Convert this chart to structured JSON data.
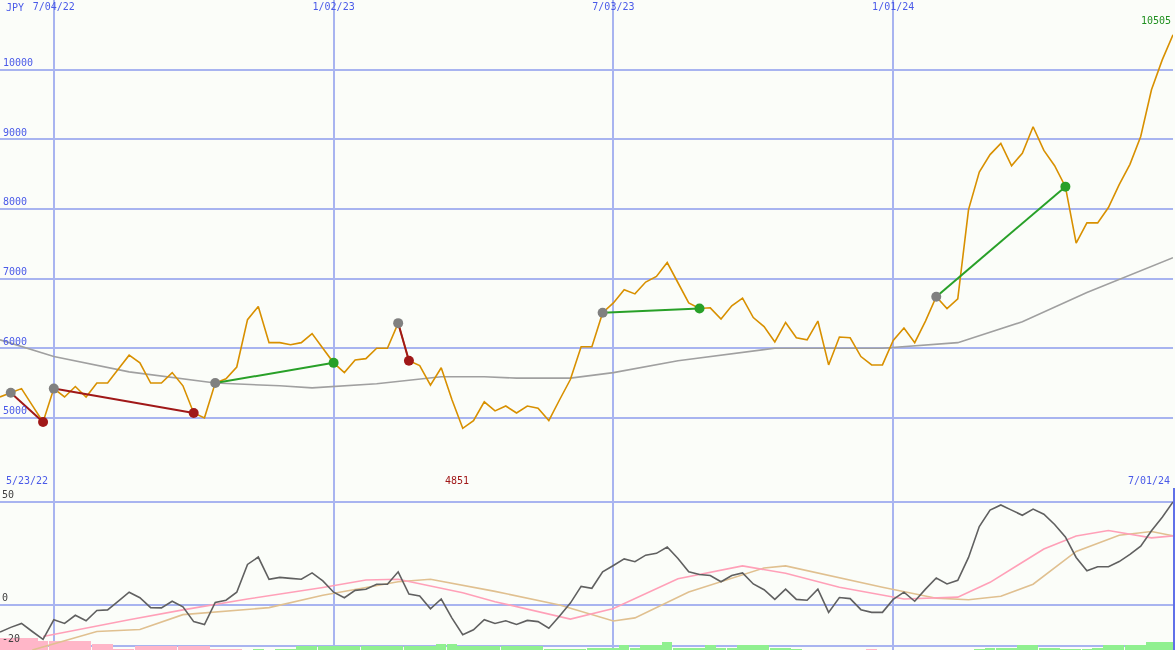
{
  "chart_data": [
    {
      "type": "line",
      "ylabel": "JPY",
      "x": [
        "2022-05-30",
        "2022-06-06",
        "2022-06-13",
        "2022-06-20",
        "2022-06-27",
        "2022-07-04",
        "2022-07-11",
        "2022-07-18",
        "2022-07-25",
        "2022-08-01",
        "2022-08-08",
        "2022-08-15",
        "2022-08-22",
        "2022-08-29",
        "2022-09-05",
        "2022-09-12",
        "2022-09-19",
        "2022-09-26",
        "2022-10-03",
        "2022-10-10",
        "2022-10-17",
        "2022-10-24",
        "2022-10-31",
        "2022-11-07",
        "2022-11-14",
        "2022-11-21",
        "2022-11-28",
        "2022-12-05",
        "2022-12-12",
        "2022-12-19",
        "2022-12-26",
        "2023-01-02",
        "2023-01-09",
        "2023-01-16",
        "2023-01-23",
        "2023-01-30",
        "2023-02-06",
        "2023-02-13",
        "2023-02-20",
        "2023-02-27",
        "2023-03-06",
        "2023-03-13",
        "2023-03-20",
        "2023-03-27",
        "2023-04-03",
        "2023-04-10",
        "2023-04-17",
        "2023-04-24",
        "2023-05-01",
        "2023-05-08",
        "2023-05-15",
        "2023-05-22",
        "2023-05-29",
        "2023-06-05",
        "2023-06-12",
        "2023-06-19",
        "2023-06-26",
        "2023-07-03",
        "2023-07-10",
        "2023-07-17",
        "2023-07-24",
        "2023-07-31",
        "2023-08-07",
        "2023-08-14",
        "2023-08-21",
        "2023-08-28",
        "2023-09-04",
        "2023-09-11",
        "2023-09-18",
        "2023-09-25",
        "2023-10-02",
        "2023-10-09",
        "2023-10-16",
        "2023-10-23",
        "2023-10-30",
        "2023-11-06",
        "2023-11-13",
        "2023-11-20",
        "2023-11-27",
        "2023-12-04",
        "2023-12-11",
        "2023-12-18",
        "2023-12-25",
        "2024-01-01",
        "2024-01-08",
        "2024-01-15",
        "2024-01-22",
        "2024-01-29",
        "2024-02-05",
        "2024-02-12",
        "2024-02-19",
        "2024-02-26",
        "2024-03-04",
        "2024-03-11",
        "2024-03-18",
        "2024-03-25",
        "2024-04-01",
        "2024-04-08",
        "2024-04-15",
        "2024-04-22",
        "2024-04-29",
        "2024-05-06",
        "2024-05-13",
        "2024-05-20",
        "2024-05-27",
        "2024-06-03",
        "2024-06-10",
        "2024-06-17",
        "2024-06-24",
        "2024-07-01"
      ],
      "series": [
        {
          "color": "#a0a0a0",
          "x": [
            "2022-05-30",
            "2022-07-04",
            "2022-08-22",
            "2022-10-17",
            "2022-11-28",
            "2022-12-19",
            "2023-01-30",
            "2023-03-13",
            "2023-04-10",
            "2023-05-01",
            "2023-06-05",
            "2023-07-03",
            "2023-08-14",
            "2023-10-16",
            "2023-12-25",
            "2024-02-12",
            "2024-03-25",
            "2024-05-06",
            "2024-07-01"
          ],
          "values": [
            6120,
            5880,
            5660,
            5500,
            5460,
            5430,
            5490,
            5590,
            5590,
            5570,
            5570,
            5650,
            5820,
            6000,
            6000,
            6080,
            6380,
            6800,
            7300
          ]
        },
        {
          "color": "#d89000",
          "values": [
            5300,
            5360,
            5420,
            5180,
            4940,
            5420,
            5300,
            5450,
            5300,
            5500,
            5500,
            5700,
            5900,
            5790,
            5500,
            5500,
            5650,
            5460,
            5070,
            5000,
            5500,
            5560,
            5730,
            6410,
            6600,
            6080,
            6080,
            6050,
            6080,
            6210,
            6000,
            5790,
            5650,
            5830,
            5850,
            6000,
            6000,
            6360,
            5820,
            5750,
            5470,
            5720,
            5260,
            4850,
            4960,
            5230,
            5100,
            5170,
            5070,
            5170,
            5140,
            4960,
            5260,
            5550,
            6020,
            6020,
            6510,
            6650,
            6840,
            6780,
            6950,
            7030,
            7230,
            6940,
            6650,
            6570,
            6580,
            6420,
            6610,
            6720,
            6440,
            6310,
            6090,
            6370,
            6150,
            6120,
            6390,
            5760,
            6160,
            6150,
            5880,
            5760,
            5760,
            6110,
            6290,
            6080,
            6390,
            6740,
            6570,
            6710,
            7990,
            8530,
            8780,
            8940,
            8620,
            8800,
            9180,
            8840,
            8620,
            8320,
            7510,
            7800,
            7800,
            8020,
            8350,
            8640,
            9040,
            9710,
            10140,
            10500
          ]
        },
        {
          "color": "#a01818",
          "marker": "circle",
          "colors": [
            "#808080",
            "#a01818"
          ],
          "x": [
            "2022-06-06",
            "2022-06-27"
          ],
          "values": [
            5360,
            4940
          ]
        },
        {
          "color": "#a01818",
          "marker": "circle",
          "colors": [
            "#808080",
            "#a01818"
          ],
          "x": [
            "2022-07-04",
            "2022-10-03"
          ],
          "values": [
            5420,
            5070
          ]
        },
        {
          "color": "#28a028",
          "marker": "circle",
          "colors": [
            "#808080",
            "#28a028"
          ],
          "x": [
            "2022-10-17",
            "2023-01-02"
          ],
          "values": [
            5500,
            5790
          ]
        },
        {
          "color": "#a01818",
          "marker": "circle",
          "colors": [
            "#808080",
            "#a01818"
          ],
          "x": [
            "2023-02-13",
            "2023-02-20"
          ],
          "values": [
            6360,
            5820
          ]
        },
        {
          "color": "#28a028",
          "marker": "circle",
          "colors": [
            "#808080",
            "#28a028"
          ],
          "x": [
            "2023-06-26",
            "2023-08-28"
          ],
          "values": [
            6510,
            6570
          ]
        },
        {
          "color": "#28a028",
          "marker": "circle",
          "colors": [
            "#808080",
            "#28a028"
          ],
          "x": [
            "2024-01-29",
            "2024-04-22"
          ],
          "values": [
            6740,
            8320
          ]
        }
      ],
      "xlim": [
        "2022-05-30",
        "2024-07-01"
      ],
      "ylim": [
        4000,
        11000
      ],
      "xticks": [
        {
          "value": "2022-07-04",
          "label": "7/04/22"
        },
        {
          "value": "2023-01-02",
          "label": "1/02/23"
        },
        {
          "value": "2023-07-03",
          "label": "7/03/23"
        },
        {
          "value": "2024-01-01",
          "label": "1/01/24"
        }
      ],
      "yticks": [
        5000,
        6000,
        7000,
        8000,
        9000,
        10000
      ],
      "grid": true,
      "annotations": [
        {
          "text": "10505",
          "x": "2024-07-01",
          "y": 10505
        }
      ]
    },
    {
      "type": "line",
      "x": [
        "2022-05-30",
        "2022-06-06",
        "2022-06-13",
        "2022-06-20",
        "2022-06-27",
        "2022-07-04",
        "2022-07-11",
        "2022-07-18",
        "2022-07-25",
        "2022-08-01",
        "2022-08-08",
        "2022-08-15",
        "2022-08-22",
        "2022-08-29",
        "2022-09-05",
        "2022-09-12",
        "2022-09-19",
        "2022-09-26",
        "2022-10-03",
        "2022-10-10",
        "2022-10-17",
        "2022-10-24",
        "2022-10-31",
        "2022-11-07",
        "2022-11-14",
        "2022-11-21",
        "2022-11-28",
        "2022-12-05",
        "2022-12-12",
        "2022-12-19",
        "2022-12-26",
        "2023-01-02",
        "2023-01-09",
        "2023-01-16",
        "2023-01-23",
        "2023-01-30",
        "2023-02-06",
        "2023-02-13",
        "2023-02-20",
        "2023-02-27",
        "2023-03-06",
        "2023-03-13",
        "2023-03-20",
        "2023-03-27",
        "2023-04-03",
        "2023-04-10",
        "2023-04-17",
        "2023-04-24",
        "2023-05-01",
        "2023-05-08",
        "2023-05-15",
        "2023-05-22",
        "2023-05-29",
        "2023-06-05",
        "2023-06-12",
        "2023-06-19",
        "2023-06-26",
        "2023-07-03",
        "2023-07-10",
        "2023-07-17",
        "2023-07-24",
        "2023-07-31",
        "2023-08-07",
        "2023-08-14",
        "2023-08-21",
        "2023-08-28",
        "2023-09-04",
        "2023-09-11",
        "2023-09-18",
        "2023-09-25",
        "2023-10-02",
        "2023-10-09",
        "2023-10-16",
        "2023-10-23",
        "2023-10-30",
        "2023-11-06",
        "2023-11-13",
        "2023-11-20",
        "2023-11-27",
        "2023-12-04",
        "2023-12-11",
        "2023-12-18",
        "2023-12-25",
        "2024-01-01",
        "2024-01-08",
        "2024-01-15",
        "2024-01-22",
        "2024-01-29",
        "2024-02-05",
        "2024-02-12",
        "2024-02-19",
        "2024-02-26",
        "2024-03-04",
        "2024-03-11",
        "2024-03-18",
        "2024-03-25",
        "2024-04-01",
        "2024-04-08",
        "2024-04-15",
        "2024-04-22",
        "2024-04-29",
        "2024-05-06",
        "2024-05-13",
        "2024-05-20",
        "2024-05-27",
        "2024-06-03",
        "2024-06-10",
        "2024-06-17",
        "2024-06-24",
        "2024-07-01"
      ],
      "series": [
        {
          "type": "bar",
          "base": [
            -22,
            -22,
            -22,
            -22,
            -22,
            -22,
            -22,
            -22,
            -22,
            -22,
            -22,
            -22,
            -22,
            -22,
            -22,
            -22,
            -22,
            -22,
            -22,
            -22,
            -22,
            -22,
            -22,
            null,
            -22,
            null,
            -22,
            -22,
            -22,
            -22,
            -22,
            -22,
            -22,
            -22,
            -22,
            -22,
            -22,
            -22,
            -22,
            -22,
            -22,
            -22,
            -22,
            -22,
            -22,
            -22,
            -22,
            -22,
            -22,
            -22,
            -22,
            -22,
            -22,
            -22,
            -22,
            -22,
            -22,
            -22,
            -22,
            -22,
            -22,
            -22,
            -22,
            -22,
            -22,
            -22,
            -22,
            -22,
            -22,
            -22,
            -22,
            -22,
            -22,
            -22,
            -22,
            null,
            null,
            null,
            null,
            null,
            null,
            -22,
            null,
            null,
            null,
            null,
            null,
            null,
            null,
            null,
            null,
            -22,
            -22,
            -22,
            -22,
            -22,
            -22,
            -22,
            -22,
            -22,
            -22,
            -22,
            -22,
            -22,
            -22,
            -22,
            -22,
            -22,
            -22,
            -22
          ],
          "values": [
            6.1,
            6.1,
            6.1,
            6.1,
            4.7,
            4.7,
            4.7,
            4.7,
            4.7,
            3.3,
            3.3,
            0.5,
            0.5,
            2,
            2,
            2,
            2,
            2,
            2,
            2,
            0.5,
            0.5,
            0.5,
            null,
            0.5,
            null,
            0.5,
            0.5,
            2,
            2,
            2,
            2,
            2,
            2,
            2,
            2,
            2,
            2,
            2,
            2,
            2,
            3.3,
            3.3,
            2,
            2,
            2,
            2,
            2,
            2,
            2,
            2,
            0.5,
            0.5,
            0.5,
            0.5,
            1.2,
            1.2,
            1.2,
            2.5,
            1.2,
            2.5,
            2.5,
            4,
            1.2,
            1.2,
            1.2,
            2.5,
            1.2,
            1.2,
            2.5,
            2.5,
            2.5,
            1.2,
            1.2,
            0.5,
            null,
            null,
            null,
            null,
            null,
            null,
            0.5,
            null,
            null,
            null,
            null,
            null,
            null,
            null,
            null,
            null,
            0.5,
            1.2,
            1.2,
            1.2,
            2.5,
            2.5,
            1.2,
            1.2,
            0.5,
            0.5,
            0.5,
            1.2,
            2.5,
            2.5,
            2.5,
            2.5,
            4,
            4,
            4
          ],
          "colors": [
            "#ffb6c8",
            "#ffb6c8",
            "#ffb6c8",
            "#ffb6c8",
            "#ffb6c8",
            "#ffb6c8",
            "#ffb6c8",
            "#ffb6c8",
            "#ffb6c8",
            "#ffb6c8",
            "#ffb6c8",
            "#ffb6c8",
            "#ffb6c8",
            "#ffb6c8",
            "#ffb6c8",
            "#ffb6c8",
            "#ffb6c8",
            "#ffb6c8",
            "#ffb6c8",
            "#ffb6c8",
            "#ffb6c8",
            "#ffb6c8",
            "#ffb6c8",
            "#90f090",
            "#90f090",
            "#90f090",
            "#90f090",
            "#90f090",
            "#90f090",
            "#90f090",
            "#90f090",
            "#90f090",
            "#90f090",
            "#90f090",
            "#90f090",
            "#90f090",
            "#90f090",
            "#90f090",
            "#90f090",
            "#90f090",
            "#90f090",
            "#90f090",
            "#90f090",
            "#90f090",
            "#90f090",
            "#90f090",
            "#90f090",
            "#90f090",
            "#90f090",
            "#90f090",
            "#90f090",
            "#90f090",
            "#90f090",
            "#90f090",
            "#90f090",
            "#90f090",
            "#90f090",
            "#90f090",
            "#90f090",
            "#90f090",
            "#90f090",
            "#90f090",
            "#90f090",
            "#90f090",
            "#90f090",
            "#90f090",
            "#90f090",
            "#90f090",
            "#90f090",
            "#90f090",
            "#90f090",
            "#90f090",
            "#90f090",
            "#90f090",
            "#90f090",
            "#90f090",
            "#90f090",
            "#90f090",
            "#90f090",
            "#90f090",
            "#90f090",
            "#ffb6c8",
            "#90f090",
            "#90f090",
            "#90f090",
            "#90f090",
            "#90f090",
            "#90f090",
            "#90f090",
            "#90f090",
            "#90f090",
            "#90f090",
            "#90f090",
            "#90f090",
            "#90f090",
            "#90f090",
            "#90f090",
            "#90f090",
            "#90f090",
            "#90f090",
            "#90f090",
            "#90f090",
            "#90f090",
            "#90f090",
            "#90f090",
            "#90f090",
            "#90f090",
            "#90f090",
            "#90f090",
            "#90f090"
          ]
        },
        {
          "color": "#e0c090",
          "x": [
            "2022-06-20",
            "2022-08-01",
            "2022-08-29",
            "2022-09-26",
            "2022-11-21",
            "2022-12-26",
            "2023-02-13",
            "2023-03-06",
            "2023-04-17",
            "2023-05-29",
            "2023-07-03",
            "2023-07-17",
            "2023-08-21",
            "2023-10-09",
            "2023-10-23",
            "2023-12-25",
            "2024-01-29",
            "2024-02-19",
            "2024-03-11",
            "2024-04-01",
            "2024-04-29",
            "2024-05-27",
            "2024-06-17",
            "2024-07-01"
          ],
          "values": [
            -22,
            -13,
            -12,
            -4.8,
            -1.4,
            4.6,
            11.2,
            12.4,
            6.5,
            -0.1,
            -7.9,
            -6.4,
            6.2,
            17.9,
            18.9,
            8.5,
            3.2,
            2.4,
            4.1,
            10,
            25.9,
            33.8,
            35.6,
            33.5
          ]
        },
        {
          "color": "#ffa0b8",
          "x": [
            "2022-06-27",
            "2022-08-22",
            "2022-09-26",
            "2022-11-07",
            "2022-12-26",
            "2023-01-23",
            "2023-02-13",
            "2023-03-27",
            "2023-04-17",
            "2023-06-05",
            "2023-07-03",
            "2023-08-14",
            "2023-09-25",
            "2023-10-23",
            "2023-11-27",
            "2024-01-08",
            "2024-02-12",
            "2024-03-04",
            "2024-04-08",
            "2024-04-29",
            "2024-05-20",
            "2024-06-17",
            "2024-07-01"
          ],
          "values": [
            -15.4,
            -7.3,
            -2.5,
            2.8,
            8.4,
            12,
            12.4,
            5.8,
            1.5,
            -7,
            -1.8,
            12.6,
            18.9,
            15.3,
            8.5,
            2.8,
            3.7,
            10.9,
            27.1,
            33.4,
            36.1,
            32.5,
            33.5
          ]
        },
        {
          "color": "#606060",
          "values": [
            -13.3,
            -11,
            -9.1,
            -13,
            -16.8,
            -7.3,
            -9.1,
            -5.1,
            -7.8,
            -2.8,
            -2.5,
            1.8,
            6.1,
            3.4,
            -1.4,
            -1.5,
            1.7,
            -1,
            -8.2,
            -9.6,
            1.1,
            2.2,
            6.1,
            19.6,
            23.2,
            12.4,
            13.3,
            12.8,
            12.4,
            15.5,
            11.6,
            6.1,
            3.4,
            7,
            7.5,
            10,
            10,
            16,
            5.2,
            4.3,
            -2,
            2.8,
            -6.5,
            -14.6,
            -12.2,
            -7.3,
            -9.1,
            -7.8,
            -9.6,
            -7.6,
            -8.2,
            -11.4,
            -5.5,
            0.8,
            8.9,
            8,
            16,
            19.1,
            22.3,
            20.9,
            24.1,
            25,
            28.1,
            22.5,
            16,
            14.7,
            14.2,
            11.2,
            14.2,
            15.5,
            10.1,
            7.3,
            2.6,
            7.6,
            2.6,
            2.2,
            7.6,
            -3.7,
            3.5,
            3,
            -2.4,
            -3.7,
            -3.7,
            2.6,
            6.1,
            1.7,
            7.6,
            13,
            10.1,
            11.9,
            23,
            38,
            46,
            48.5,
            46,
            43.5,
            46.5,
            44,
            39,
            33,
            23,
            16.5,
            18.5,
            18.5,
            21,
            24.5,
            28.5,
            36,
            42.5,
            50
          ]
        }
      ],
      "xlim": [
        "2022-05-30",
        "2024-07-01"
      ],
      "ylim": [
        -22,
        57
      ],
      "xticks": [
        {
          "value": "2022-07-04",
          "label": null
        },
        {
          "value": "2023-01-02",
          "label": null
        },
        {
          "value": "2023-07-03",
          "label": null
        },
        {
          "value": "2024-01-01",
          "label": null
        }
      ],
      "yticks": [
        50,
        0,
        -20
      ],
      "tick_labels": "y",
      "grid": true,
      "annotations": [
        "5/23/22",
        "7/01/24",
        "4851"
      ]
    }
  ]
}
